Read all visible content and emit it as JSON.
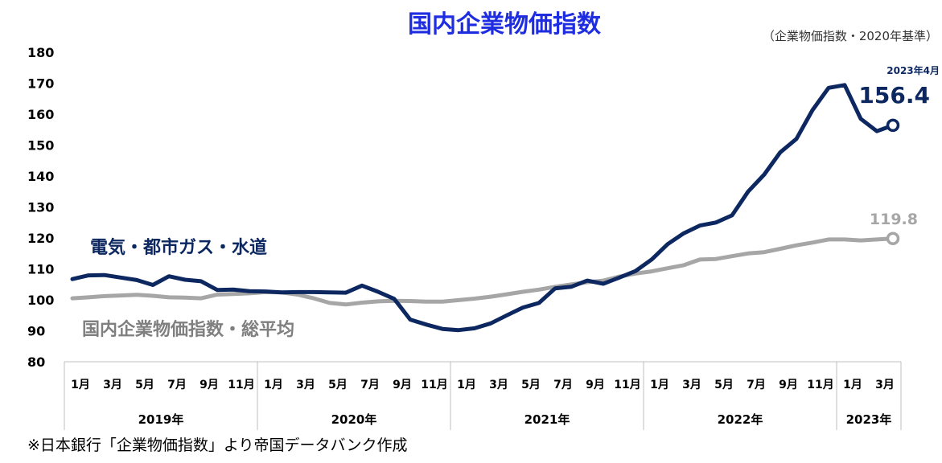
{
  "colors": {
    "title": "#1F2DE0",
    "navy": "#0D2860",
    "gray": "#A6A6A6",
    "gray_text": "#7F7F7F",
    "axis": "#BFBFBF"
  },
  "chart_data": {
    "type": "line",
    "title": "国内企業物価指数",
    "subtitle": "（企業物価指数・2020年基準）",
    "ylim": [
      80,
      180
    ],
    "yticks": [
      "180",
      "170",
      "160",
      "150",
      "140",
      "130",
      "120",
      "110",
      "100",
      "90",
      "80"
    ],
    "x_month_labels": [
      "1月",
      "3月",
      "5月",
      "7月",
      "9月",
      "11月",
      "1月",
      "3月",
      "5月",
      "7月",
      "9月",
      "11月",
      "1月",
      "3月",
      "5月",
      "7月",
      "9月",
      "11月",
      "1月",
      "3月",
      "5月",
      "7月",
      "9月",
      "11月",
      "1月",
      "3月"
    ],
    "years": [
      "2019年",
      "2020年",
      "2021年",
      "2022年",
      "2023年"
    ],
    "x": [
      "2019-01",
      "2019-02",
      "2019-03",
      "2019-04",
      "2019-05",
      "2019-06",
      "2019-07",
      "2019-08",
      "2019-09",
      "2019-10",
      "2019-11",
      "2019-12",
      "2020-01",
      "2020-02",
      "2020-03",
      "2020-04",
      "2020-05",
      "2020-06",
      "2020-07",
      "2020-08",
      "2020-09",
      "2020-10",
      "2020-11",
      "2020-12",
      "2021-01",
      "2021-02",
      "2021-03",
      "2021-04",
      "2021-05",
      "2021-06",
      "2021-07",
      "2021-08",
      "2021-09",
      "2021-10",
      "2021-11",
      "2021-12",
      "2022-01",
      "2022-02",
      "2022-03",
      "2022-04",
      "2022-05",
      "2022-06",
      "2022-07",
      "2022-08",
      "2022-09",
      "2022-10",
      "2022-11",
      "2022-12",
      "2023-01",
      "2023-02",
      "2023-03",
      "2023-04"
    ],
    "series": [
      {
        "name": "電気・都市ガス・水道",
        "color": "#0D2860",
        "values": [
          106.7,
          107.9,
          108.0,
          107.2,
          106.4,
          104.8,
          107.6,
          106.5,
          106.0,
          103.2,
          103.3,
          102.8,
          102.7,
          102.4,
          102.5,
          102.5,
          102.4,
          102.3,
          104.6,
          102.6,
          100.3,
          93.6,
          92.0,
          90.6,
          90.2,
          90.8,
          92.4,
          95.0,
          97.5,
          99.0,
          103.7,
          104.2,
          106.2,
          105.2,
          107.2,
          109.3,
          113.0,
          118.0,
          121.5,
          124.0,
          125.0,
          127.3,
          135.0,
          140.5,
          147.7,
          152.0,
          161.3,
          168.5,
          169.4,
          158.5,
          154.5,
          156.4
        ]
      },
      {
        "name": "国内企業物価指数・総平均",
        "color": "#A6A6A6",
        "values": [
          100.5,
          100.8,
          101.2,
          101.4,
          101.6,
          101.3,
          100.8,
          100.7,
          100.5,
          101.7,
          101.9,
          102.1,
          102.5,
          102.4,
          101.7,
          100.5,
          99.0,
          98.5,
          99.1,
          99.5,
          99.7,
          99.6,
          99.4,
          99.4,
          99.9,
          100.4,
          101.0,
          101.8,
          102.6,
          103.3,
          104.2,
          105.0,
          105.7,
          106.2,
          107.5,
          108.5,
          109.2,
          110.2,
          111.2,
          113.0,
          113.2,
          114.1,
          115.0,
          115.4,
          116.5,
          117.6,
          118.5,
          119.5,
          119.5,
          119.2,
          119.5,
          119.8
        ]
      }
    ],
    "end_labels": {
      "navy_date": "2023年4月",
      "navy_value": "156.4",
      "gray_value": "119.8"
    }
  },
  "source_note": "※日本銀行「企業物価指数」より帝国データバンク作成"
}
